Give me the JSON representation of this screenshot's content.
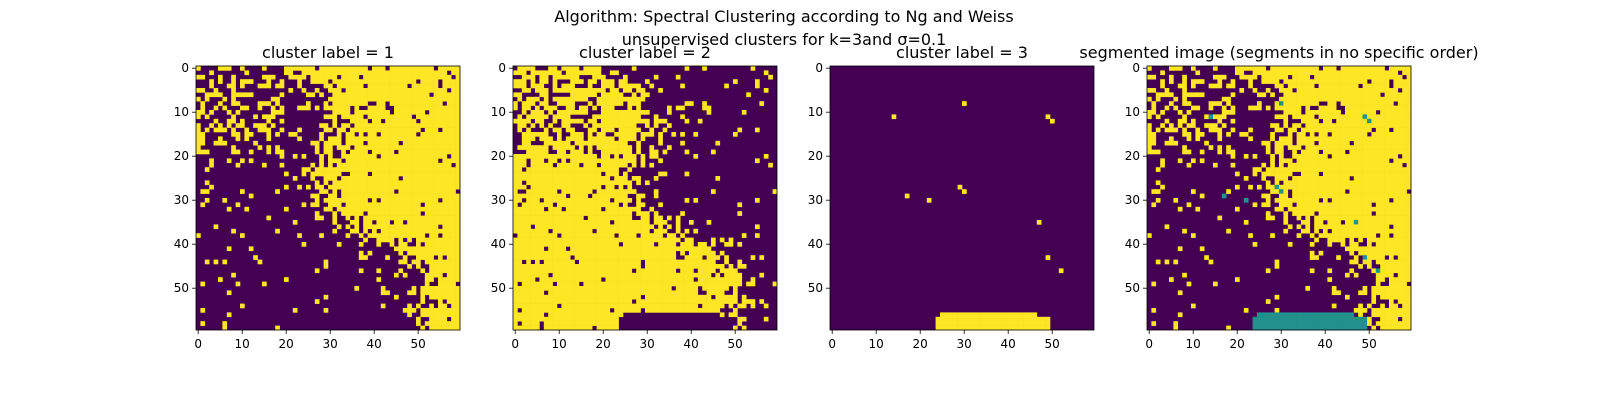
{
  "figure": {
    "suptitle_line1": "Algorithm: Spectral Clustering according to Ng and Weiss",
    "suptitle_line2": "unsupervised clusters for k=3and σ=0.1"
  },
  "colors": {
    "background_cluster": "#440154",
    "foreground_cluster": "#fde725",
    "third_cluster": "#21918c"
  },
  "chart_data": [
    {
      "type": "heatmap",
      "title": "cluster label = 1",
      "grid_size": [
        60,
        60
      ],
      "x_ticks": [
        "0",
        "10",
        "20",
        "30",
        "40",
        "50"
      ],
      "y_ticks": [
        "0",
        "10",
        "20",
        "30",
        "40",
        "50"
      ],
      "palette": [
        "#440154",
        "#fde725"
      ],
      "description_values": "binary mask (0 = not in cluster, 1 = in cluster); yellow dominates top-right triangle"
    },
    {
      "type": "heatmap",
      "title": "cluster label = 2",
      "grid_size": [
        60,
        60
      ],
      "x_ticks": [
        "0",
        "10",
        "20",
        "30",
        "40",
        "50"
      ],
      "y_ticks": [
        "0",
        "10",
        "20",
        "30",
        "40",
        "50"
      ],
      "palette": [
        "#440154",
        "#fde725"
      ],
      "description_values": "binary mask; yellow dominates lower-left triangle"
    },
    {
      "type": "heatmap",
      "title": "cluster label = 3",
      "grid_size": [
        60,
        60
      ],
      "x_ticks": [
        "0",
        "10",
        "20",
        "30",
        "40",
        "50"
      ],
      "y_ticks": [
        "0",
        "10",
        "20",
        "30",
        "40",
        "50"
      ],
      "palette": [
        "#440154",
        "#fde725"
      ],
      "description_values": "binary mask; small yellow band at rows 56-59, columns 24-50 plus scattered pixels"
    },
    {
      "type": "heatmap",
      "title": "segmented image (segments in no specific order)",
      "grid_size": [
        60,
        60
      ],
      "x_ticks": [
        "0",
        "10",
        "20",
        "30",
        "40",
        "50"
      ],
      "y_ticks": [
        "0",
        "10",
        "20",
        "30",
        "40",
        "50"
      ],
      "palette": [
        "#440154",
        "#21918c",
        "#fde725"
      ],
      "description_values": "segment labels 1,2,3 combined"
    }
  ]
}
